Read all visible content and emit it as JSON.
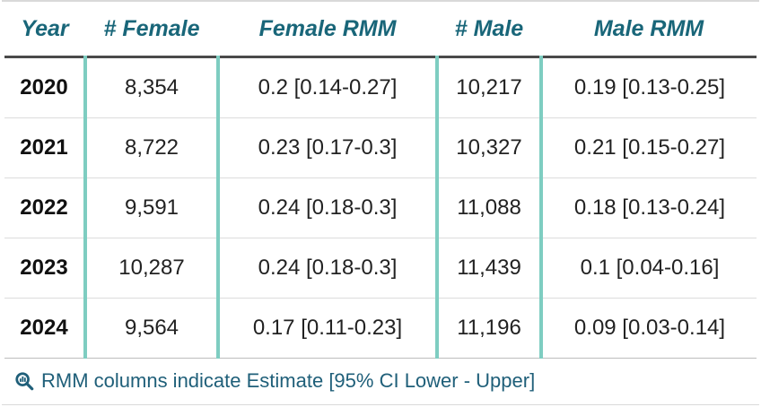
{
  "chart_data": {
    "type": "table",
    "columns": [
      "Year",
      "# Female",
      "Female RMM",
      "# Male",
      "Male RMM"
    ],
    "rows": [
      [
        "2020",
        "8,354",
        "0.2 [0.14-0.27]",
        "10,217",
        "0.19 [0.13-0.25]"
      ],
      [
        "2021",
        "8,722",
        "0.23 [0.17-0.3]",
        "10,327",
        "0.21 [0.15-0.27]"
      ],
      [
        "2022",
        "9,591",
        "0.24 [0.18-0.3]",
        "11,088",
        "0.18 [0.13-0.24]"
      ],
      [
        "2023",
        "10,287",
        "0.24 [0.18-0.3]",
        "11,439",
        "0.1 [0.04-0.16]"
      ],
      [
        "2024",
        "9,564",
        "0.17 [0.11-0.23]",
        "11,196",
        "0.09 [0.03-0.14]"
      ]
    ]
  },
  "footnote": {
    "icon": "magnifier-chart-icon",
    "text": "RMM columns indicate Estimate [95% CI Lower - Upper]"
  },
  "colors": {
    "header_text": "#196679",
    "column_separator": "#7ecdc1",
    "footnote_text": "#1f5f79"
  }
}
